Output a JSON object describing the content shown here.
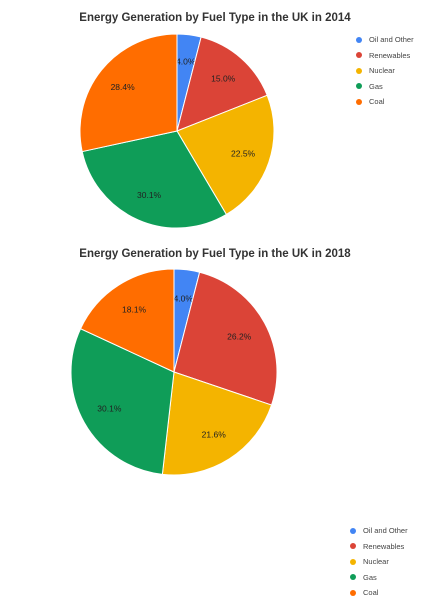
{
  "chart_data": [
    {
      "type": "pie",
      "title": "Energy Generation by Fuel Type in the UK in 2014",
      "labels": [
        "Oil and Other",
        "Renewables",
        "Nuclear",
        "Gas",
        "Coal"
      ],
      "values": [
        4.0,
        15.0,
        22.5,
        30.1,
        28.4
      ],
      "value_labels": [
        "4.0%",
        "15.0%",
        "22.5%",
        "30.1%",
        "28.4%"
      ],
      "colors": [
        "#4285F4",
        "#DB4437",
        "#F4B400",
        "#0F9D58",
        "#FF6D00"
      ],
      "legend_position": "right"
    },
    {
      "type": "pie",
      "title": "Energy Generation by Fuel Type in the UK in 2018",
      "labels": [
        "Oil and Other",
        "Renewables",
        "Nuclear",
        "Gas",
        "Coal"
      ],
      "values": [
        4.0,
        26.2,
        21.6,
        30.1,
        18.1
      ],
      "value_labels": [
        "4.0%",
        "26.2%",
        "21.6%",
        "30.1%",
        "18.1%"
      ],
      "colors": [
        "#4285F4",
        "#DB4437",
        "#F4B400",
        "#0F9D58",
        "#FF6D00"
      ],
      "legend_position": "right"
    }
  ]
}
